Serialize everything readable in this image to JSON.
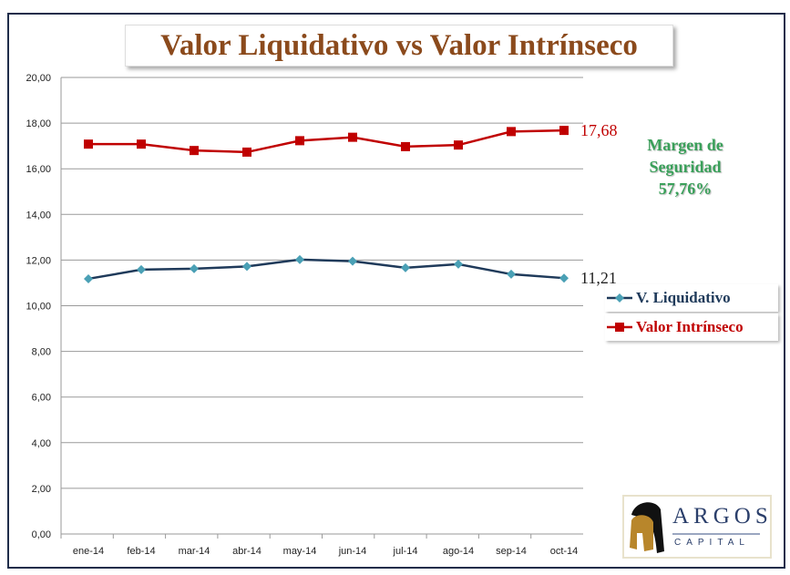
{
  "chart_data": {
    "type": "line",
    "title": "Valor Liquidativo vs Valor Intrínseco",
    "categories": [
      "ene-14",
      "feb-14",
      "mar-14",
      "abr-14",
      "may-14",
      "jun-14",
      "jul-14",
      "ago-14",
      "sep-14",
      "oct-14"
    ],
    "yticks": [
      "0,00",
      "2,00",
      "4,00",
      "6,00",
      "8,00",
      "10,00",
      "12,00",
      "14,00",
      "16,00",
      "18,00",
      "20,00"
    ],
    "ylim": [
      0,
      20
    ],
    "grid": true,
    "legend_placement": "right",
    "series": [
      {
        "name": "V. Liquidativo",
        "color": "#1f3a5a",
        "marker_color": "#4aa0b5",
        "marker": "diamond",
        "values": [
          11.18,
          11.58,
          11.62,
          11.72,
          12.02,
          11.95,
          11.66,
          11.82,
          11.38,
          11.21
        ],
        "end_label": "11,21"
      },
      {
        "name": "Valor Intrínseco",
        "color": "#c00000",
        "marker_color": "#c00000",
        "marker": "square",
        "values": [
          17.08,
          17.08,
          16.8,
          16.73,
          17.23,
          17.38,
          16.97,
          17.04,
          17.63,
          17.68
        ],
        "end_label": "17,68"
      }
    ],
    "annotation": {
      "line1": "Margen de",
      "line2": "Seguridad",
      "value": "57,76%"
    }
  },
  "logo": {
    "name": "ARGOS",
    "sub": "CAPITAL"
  }
}
